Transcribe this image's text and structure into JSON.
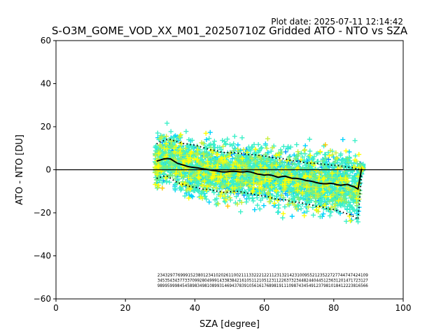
{
  "chart_data": {
    "type": "scatter",
    "title": "S-O3M_GOME_VOD_XX_M01_20250710Z Gridded ATO - NTO vs SZA",
    "subtitle": "Plot date: 2025-07-11 12:14:42",
    "xlabel": "SZA [degree]",
    "ylabel": "ATO - NTO [DU]",
    "xlim": [
      0,
      100
    ],
    "ylim": [
      -60,
      60
    ],
    "xticks": [
      "0",
      "20",
      "40",
      "60",
      "80",
      "100"
    ],
    "yticks": [
      "−60",
      "−40",
      "−20",
      "0",
      "20",
      "40",
      "60"
    ],
    "reference_line_y": 0,
    "grid": false,
    "marker": "+",
    "colormap": [
      "#1a1aff",
      "#0096ff",
      "#00d2ff",
      "#3cf0c8",
      "#78f078",
      "#c8f03c",
      "#ffff00",
      "#ffc800",
      "#ff9600"
    ],
    "scatter_x_range": [
      28.5,
      88.5
    ],
    "median_line": {
      "x": [
        29,
        30,
        31,
        32,
        33,
        34,
        35,
        36,
        37,
        38,
        39,
        40,
        41,
        42,
        43,
        44,
        45,
        46,
        47,
        48,
        49,
        50,
        51,
        52,
        53,
        54,
        55,
        56,
        57,
        58,
        59,
        60,
        61,
        62,
        63,
        64,
        65,
        66,
        67,
        68,
        69,
        70,
        71,
        72,
        73,
        74,
        75,
        76,
        77,
        78,
        79,
        80,
        81,
        82,
        83,
        84,
        85,
        86,
        87,
        88
      ],
      "y": [
        4,
        4.5,
        5,
        5.2,
        5,
        4,
        3,
        2.5,
        2,
        1.5,
        1.2,
        1,
        0.8,
        0.5,
        0.3,
        0,
        -0.3,
        -0.5,
        -0.8,
        -1,
        -1,
        -0.8,
        -0.7,
        -0.8,
        -1,
        -1,
        -0.8,
        -1,
        -1.5,
        -2,
        -2.2,
        -2.5,
        -2.3,
        -2.5,
        -3,
        -3.5,
        -3.2,
        -3,
        -3.5,
        -4,
        -4,
        -4.2,
        -4.5,
        -5,
        -5.2,
        -5.5,
        -6,
        -6.3,
        -6.5,
        -6.5,
        -6.3,
        -6.5,
        -7,
        -7.2,
        -7,
        -6.8,
        -7.5,
        -8,
        -9,
        0.5
      ]
    },
    "upper_band": {
      "x": [
        29,
        30,
        31,
        32,
        33,
        34,
        35,
        36,
        37,
        38,
        39,
        40,
        41,
        42,
        43,
        44,
        45,
        46,
        47,
        48,
        49,
        50,
        51,
        52,
        53,
        54,
        55,
        56,
        57,
        58,
        59,
        60,
        61,
        62,
        63,
        64,
        65,
        66,
        67,
        68,
        69,
        70,
        71,
        72,
        73,
        74,
        75,
        76,
        77,
        78,
        79,
        80,
        81,
        82,
        83,
        84,
        85,
        86,
        87,
        88
      ],
      "y": [
        12,
        13,
        13.5,
        14,
        14,
        13.5,
        13,
        12.5,
        12,
        12,
        11.5,
        11.5,
        11,
        10.5,
        10,
        9.5,
        9,
        9,
        8.5,
        8,
        8,
        8,
        8,
        7.8,
        7.5,
        7.5,
        7,
        7,
        7,
        6.8,
        6.5,
        6.5,
        6,
        5.8,
        5.5,
        5.3,
        5.2,
        5,
        4.5,
        4.3,
        4,
        3.8,
        3.5,
        3.2,
        3,
        3,
        3,
        2.8,
        2.5,
        2.5,
        2.2,
        2,
        2,
        1.8,
        1.5,
        1.2,
        1,
        0.8,
        0,
        1
      ]
    },
    "lower_band": {
      "x": [
        29,
        30,
        31,
        32,
        33,
        34,
        35,
        36,
        37,
        38,
        39,
        40,
        41,
        42,
        43,
        44,
        45,
        46,
        47,
        48,
        49,
        50,
        51,
        52,
        53,
        54,
        55,
        56,
        57,
        58,
        59,
        60,
        61,
        62,
        63,
        64,
        65,
        66,
        67,
        68,
        69,
        70,
        71,
        72,
        73,
        74,
        75,
        76,
        77,
        78,
        79,
        80,
        81,
        82,
        83,
        84,
        85,
        86,
        87,
        88
      ],
      "y": [
        -4,
        -3.5,
        -3,
        -3,
        -4,
        -5,
        -6,
        -6.5,
        -7,
        -7.5,
        -8,
        -8,
        -8.5,
        -9,
        -9,
        -9.2,
        -9.5,
        -10,
        -10,
        -10.5,
        -10.5,
        -10.3,
        -10,
        -10,
        -10.2,
        -10.5,
        -11,
        -11,
        -11.5,
        -11.8,
        -12,
        -12.3,
        -12.5,
        -13,
        -13.5,
        -13.8,
        -14,
        -14,
        -14.5,
        -15,
        -15,
        -15.3,
        -15.5,
        -16,
        -16.2,
        -16.5,
        -17,
        -17,
        -17.5,
        -18,
        -18.3,
        -18.5,
        -19,
        -19.5,
        -20,
        -20.5,
        -21,
        -22,
        -23,
        -2
      ]
    },
    "count_labels_row1": "23432977699915238012341020261100211133222122112313214231009552123522727744747424109",
    "count_labels_row2": "3453543437733709928049991433838421610511210512311226373234482440445123631201471723127",
    "count_labels_row3": "9899599984545898349810899314694378391056161768981911109874345491237981018412223816566"
  }
}
